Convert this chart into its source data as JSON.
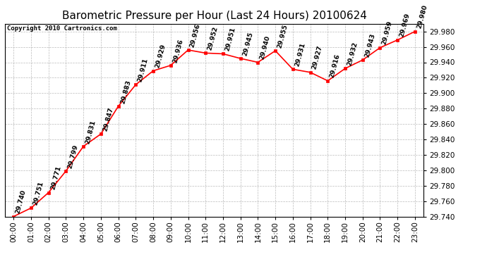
{
  "title": "Barometric Pressure per Hour (Last 24 Hours) 20100624",
  "copyright": "Copyright 2010 Cartronics.com",
  "hours": [
    "00:00",
    "01:00",
    "02:00",
    "03:00",
    "04:00",
    "05:00",
    "06:00",
    "07:00",
    "08:00",
    "09:00",
    "10:00",
    "11:00",
    "12:00",
    "13:00",
    "14:00",
    "15:00",
    "16:00",
    "17:00",
    "18:00",
    "19:00",
    "20:00",
    "21:00",
    "22:00",
    "23:00"
  ],
  "values": [
    29.74,
    29.751,
    29.771,
    29.799,
    29.831,
    29.847,
    29.883,
    29.911,
    29.929,
    29.936,
    29.956,
    29.952,
    29.951,
    29.945,
    29.94,
    29.955,
    29.931,
    29.927,
    29.916,
    29.932,
    29.943,
    29.959,
    29.969,
    29.98
  ],
  "ylim": [
    29.74,
    29.99
  ],
  "ytick_step": 0.02,
  "line_color": "red",
  "marker_color": "red",
  "marker_size": 3,
  "bg_color": "white",
  "grid_color": "#aaaaaa",
  "title_fontsize": 11,
  "label_fontsize": 6.5,
  "axis_label_fontsize": 7.5,
  "copyright_fontsize": 6.5
}
